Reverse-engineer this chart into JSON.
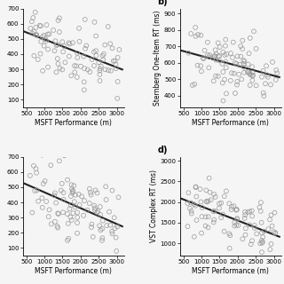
{
  "subplot_labels": [
    "b)",
    "d)"
  ],
  "xlabel": "MSFT Performance (m)",
  "ylabel_b": "Sternberg One-Item RT (ms)",
  "ylabel_d": "VST Complex RT (ms)",
  "xlim_all": [
    400,
    3200
  ],
  "ylim_a": [
    50,
    700
  ],
  "ylim_b": [
    330,
    930
  ],
  "ylim_c": [
    50,
    700
  ],
  "ylim_d": [
    700,
    3100
  ],
  "xticks_all": [
    500,
    1000,
    1500,
    2000,
    2500,
    3000
  ],
  "yticks_b": [
    400,
    500,
    600,
    700,
    800,
    900
  ],
  "yticks_d": [
    1000,
    1500,
    2000,
    2500,
    3000
  ],
  "background_color": "#f5f5f5",
  "scatter_facecolor": "none",
  "scatter_edgecolor": "#999999",
  "line_color": "#222222",
  "marker_size": 3.5,
  "line_width": 1.5,
  "font_size": 6,
  "label_fontsize": 5.5,
  "n_points": 100,
  "slope_a": -0.07,
  "intercept_a": 550,
  "noise_a": 120,
  "slope_b": -0.05,
  "intercept_b": 680,
  "noise_b": 90,
  "slope_c": -0.12,
  "intercept_c": 600,
  "noise_c": 130,
  "slope_d": -0.18,
  "intercept_d": 1900,
  "noise_d": 380
}
